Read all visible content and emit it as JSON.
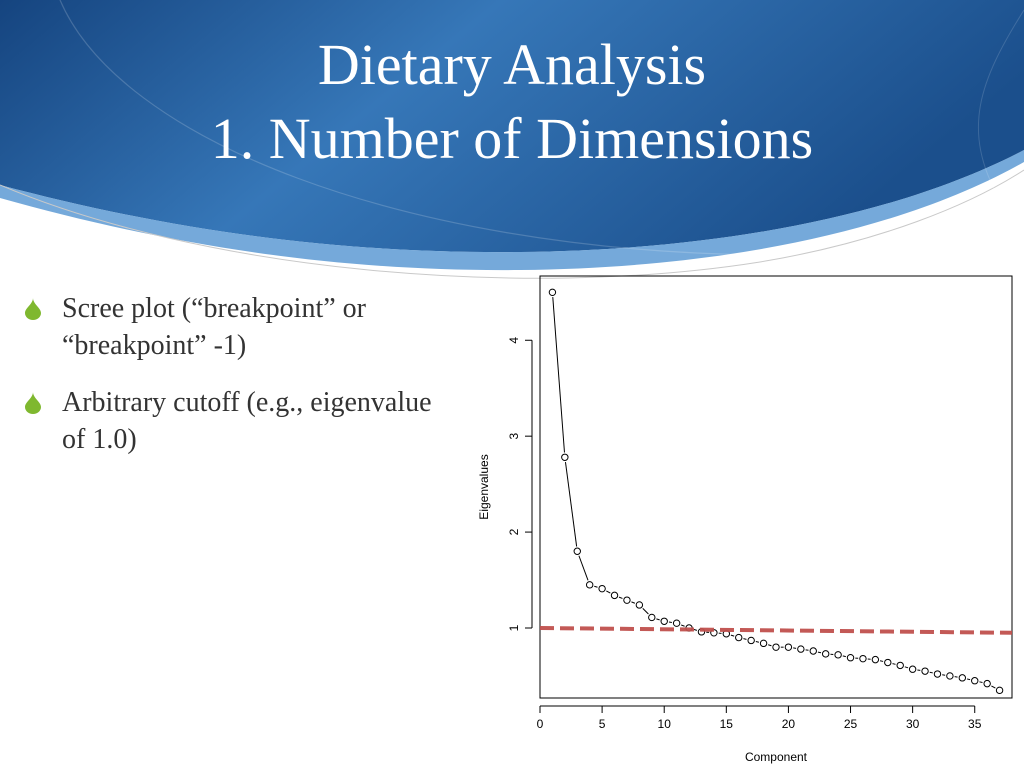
{
  "slide": {
    "title_line1": "Dietary Analysis",
    "title_line2": "1. Number of Dimensions",
    "bullets": [
      {
        "icon": "green-drop-icon",
        "text": "Scree plot (“breakpoint” or “breakpoint” -1)"
      },
      {
        "icon": "green-drop-icon",
        "text": "Arbitrary cutoff (e.g., eigenvalue of 1.0)"
      }
    ]
  },
  "colors": {
    "header_dark": "#1a4f8f",
    "header_light": "#3a7ec0",
    "bullet_green": "#7fb82f",
    "cutoff_line": "#c0504d"
  },
  "chart_data": {
    "type": "line",
    "xlabel": "Component",
    "ylabel": "Eigenvalues",
    "xlim": [
      0,
      38
    ],
    "ylim": [
      0.27,
      4.67
    ],
    "xticks": [
      0,
      5,
      10,
      15,
      20,
      25,
      30,
      35
    ],
    "yticks": [
      1,
      2,
      3,
      4
    ],
    "grid": false,
    "series": [
      {
        "marker": "open-circle",
        "x": [
          1,
          2,
          3,
          4,
          5,
          6,
          7,
          8,
          9,
          10,
          11,
          12,
          13,
          14,
          15,
          16,
          17,
          18,
          19,
          20,
          21,
          22,
          23,
          24,
          25,
          26,
          27,
          28,
          29,
          30,
          31,
          32,
          33,
          34,
          35,
          36,
          37
        ],
        "values": [
          4.5,
          2.78,
          1.8,
          1.45,
          1.41,
          1.34,
          1.29,
          1.24,
          1.11,
          1.07,
          1.05,
          1.0,
          0.96,
          0.95,
          0.94,
          0.9,
          0.87,
          0.84,
          0.8,
          0.8,
          0.78,
          0.76,
          0.73,
          0.72,
          0.69,
          0.68,
          0.67,
          0.64,
          0.61,
          0.57,
          0.55,
          0.52,
          0.5,
          0.48,
          0.45,
          0.42,
          0.35
        ]
      }
    ],
    "reference_line": {
      "style": "dashed",
      "color": "#c0504d",
      "x": [
        0,
        38
      ],
      "values": [
        1.0,
        0.95
      ]
    }
  }
}
